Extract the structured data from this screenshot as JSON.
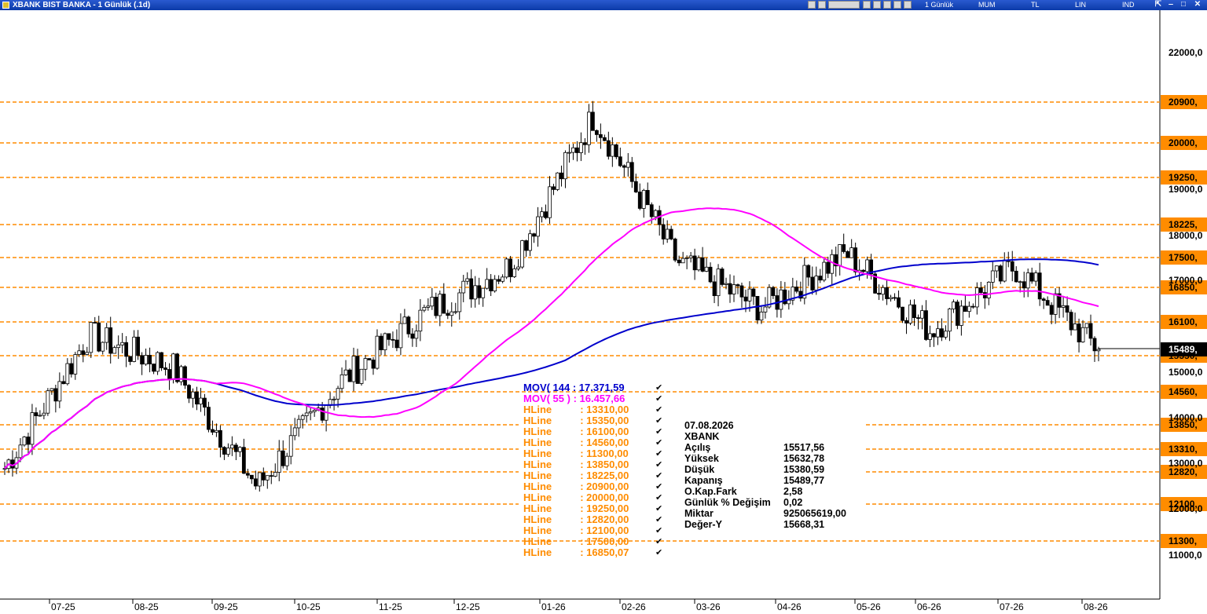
{
  "window": {
    "title": "XBANK BIST BANKA - 1 Günlük (.1d)"
  },
  "toolbar": {
    "period": "1 Günlük",
    "type": "MUM",
    "currency": "TL",
    "scale": "LIN",
    "indicator": "IND"
  },
  "colors": {
    "accent": "#ff8c00",
    "ma144": "#0000cc",
    "ma55": "#ff00ff",
    "titlebar": "#0b3aa8"
  },
  "legend": {
    "mov144": "MOV( 144 : 17.371,59",
    "mov55": "MOV( 55 ) : 16.457,66",
    "hlines": [
      "HLine          : 13310,00",
      "HLine          : 15350,00",
      "HLine          : 16100,00",
      "HLine          : 14560,00",
      "HLine          : 11300,00",
      "HLine          : 13850,00",
      "HLine          : 18225,00",
      "HLine          : 20900,00",
      "HLine          : 20000,00",
      "HLine          : 19250,00",
      "HLine          : 12820,00",
      "HLine          : 12100,00",
      "HLine          : 17500,00",
      "HLine          : 16850,07"
    ]
  },
  "info": {
    "date": "07.08.2026",
    "symbol": "XBANK",
    "rows": [
      {
        "label": "Açılış",
        "value": "15517,56"
      },
      {
        "label": "Yüksek",
        "value": "15632,78"
      },
      {
        "label": "Düşük",
        "value": "15380,59"
      },
      {
        "label": "Kapanış",
        "value": "15489,77"
      },
      {
        "label": "O.Kap.Fark",
        "value": "2,58"
      },
      {
        "label": "Günlük % Değişim",
        "value": "0,02"
      },
      {
        "label": "Miktar",
        "value": "925065619,00"
      },
      {
        "label": "Değer-Y",
        "value": "15668,31"
      }
    ]
  },
  "chart_data": {
    "type": "candlestick",
    "symbol": "XBANK",
    "y_ticks": [
      "22000,0",
      "19000,0",
      "18000,0",
      "17000,0",
      "15000,0",
      "14000,0",
      "13000,0",
      "12000,0",
      "11000,0"
    ],
    "hline_labels": [
      "20900,",
      "20000,",
      "19250,",
      "18225,",
      "17500,",
      "16850,",
      "16100,",
      "15350,",
      "14560,",
      "13850,",
      "13310,",
      "12820,",
      "12100,",
      "11300,"
    ],
    "hline_values": [
      20900,
      20000,
      19250,
      18225,
      17500,
      16850,
      16100,
      15350,
      14560,
      13850,
      13310,
      12820,
      12100,
      11300
    ],
    "last_price_label": "15489,",
    "x_ticks": [
      "07-25",
      "08-25",
      "09-25",
      "10-25",
      "11-25",
      "12-25",
      "01-26",
      "02-26",
      "03-26",
      "04-26",
      "05-26",
      "06-26",
      "07-26",
      "08-26"
    ],
    "ma144_last": 17371.59,
    "ma55_last": 16457.66,
    "close_monthly": [
      12900,
      15800,
      15100,
      12500,
      14800,
      16300,
      17300,
      20600,
      17400,
      16400,
      17600,
      15900,
      17300,
      15490
    ],
    "last_candle": {
      "open": 15517.56,
      "high": 15632.78,
      "low": 15380.59,
      "close": 15489.77
    }
  }
}
